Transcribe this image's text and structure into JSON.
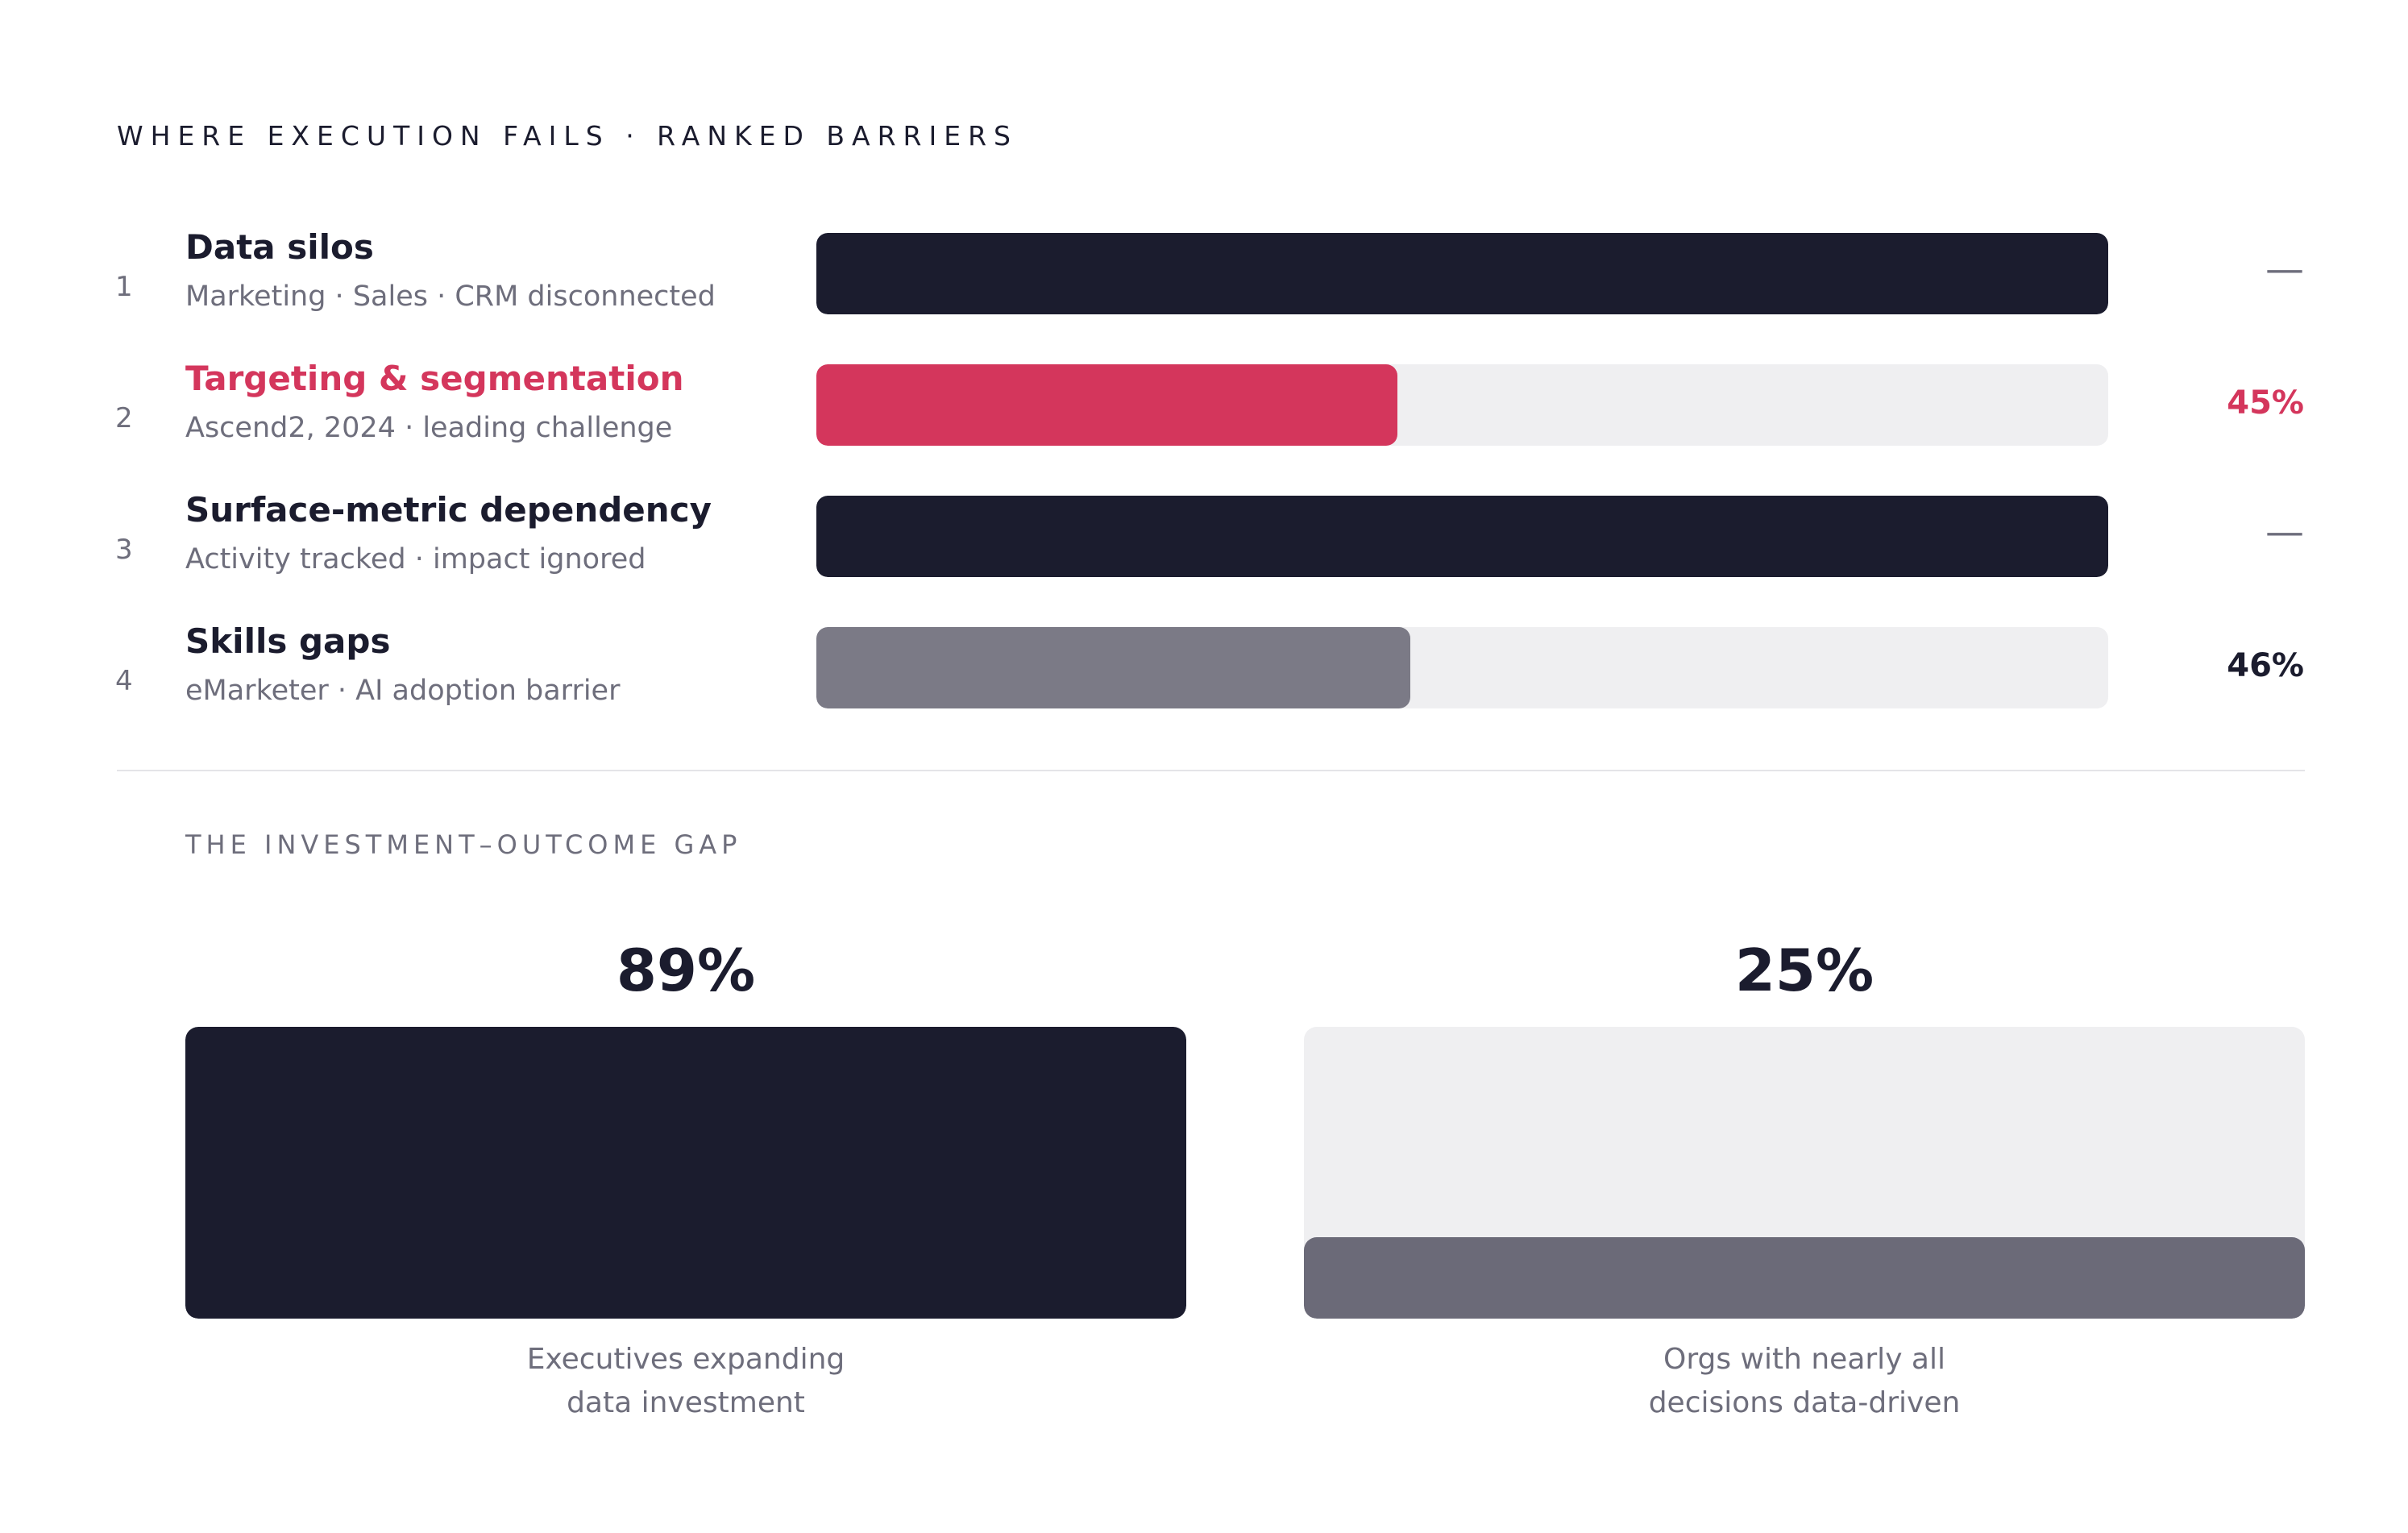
{
  "barriers": {
    "title": "WHERE EXECUTION FAILS · RANKED BARRIERS",
    "rows": [
      {
        "rank": "1",
        "name": "Data silos",
        "sub": "Marketing · Sales · CRM disconnected",
        "value_label": "—",
        "fill_fraction": 1.0,
        "fill_color": "#1b1c2e",
        "highlight": false
      },
      {
        "rank": "2",
        "name": "Targeting & segmentation",
        "sub": "Ascend2, 2024 · leading challenge",
        "value_label": "45%",
        "fill_fraction": 0.45,
        "fill_color": "#d4365c",
        "highlight": true
      },
      {
        "rank": "3",
        "name": "Surface-metric dependency",
        "sub": "Activity tracked · impact ignored",
        "value_label": "—",
        "fill_fraction": 1.0,
        "fill_color": "#1b1c2e",
        "highlight": false
      },
      {
        "rank": "4",
        "name": "Skills gaps",
        "sub": "eMarketer · AI adoption barrier",
        "value_label": "46%",
        "fill_fraction": 0.46,
        "fill_color": "#7b7a86",
        "highlight": false
      }
    ]
  },
  "gap": {
    "title": "THE INVESTMENT–OUTCOME GAP",
    "items": [
      {
        "value_label": "89%",
        "fill_fraction": 1.0,
        "fill_color": "#1b1c2e",
        "label_lines": [
          "Executives expanding",
          "data investment"
        ]
      },
      {
        "value_label": "25%",
        "fill_fraction": 0.28,
        "fill_color": "#6b6a78",
        "label_lines": [
          "Orgs with nearly all",
          "decisions data-driven"
        ]
      }
    ]
  },
  "chart_data": [
    {
      "type": "bar",
      "title": "WHERE EXECUTION FAILS · RANKED BARRIERS",
      "orientation": "horizontal",
      "categories": [
        "Data silos",
        "Targeting & segmentation",
        "Surface-metric dependency",
        "Skills gaps"
      ],
      "values": [
        null,
        45,
        null,
        46
      ],
      "value_labels": [
        "—",
        "45%",
        "—",
        "46%"
      ],
      "xlim": [
        0,
        100
      ]
    },
    {
      "type": "bar",
      "title": "THE INVESTMENT–OUTCOME GAP",
      "categories": [
        "Executives expanding data investment",
        "Orgs with nearly all decisions data-driven"
      ],
      "values": [
        89,
        25
      ],
      "value_labels": [
        "89%",
        "25%"
      ]
    }
  ],
  "colors": {
    "ink": "#1b1c2e",
    "accent": "#d4365c",
    "muted": "#6e6e7c",
    "track": "#efeff1"
  }
}
